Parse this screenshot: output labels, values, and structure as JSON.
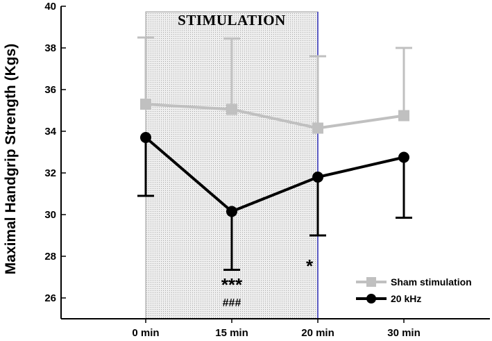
{
  "chart_data": {
    "type": "line",
    "title": "",
    "xlabel": "",
    "ylabel": "Maximal Handgrip Strength (Kgs)",
    "categories": [
      "0 min",
      "15 min",
      "20 min",
      "30 min"
    ],
    "ylim": [
      25,
      40
    ],
    "yticks": [
      26,
      28,
      30,
      32,
      34,
      36,
      38,
      40
    ],
    "grid": false,
    "legend_position": "bottom-right",
    "shaded_region": {
      "label": "STIMULATION",
      "from": "0 min",
      "to": "20 min"
    },
    "series": [
      {
        "name": "Sham stimulation",
        "color": "#c0c0c0",
        "marker": "square",
        "values": [
          35.3,
          35.05,
          34.15,
          34.75
        ],
        "error_upper": [
          38.5,
          38.45,
          37.6,
          38.0
        ],
        "error_lower": null
      },
      {
        "name": "20 kHz",
        "color": "#000000",
        "marker": "circle",
        "values": [
          33.7,
          30.15,
          31.8,
          32.75
        ],
        "error_upper": null,
        "error_lower": [
          30.9,
          27.35,
          29.0,
          29.85
        ]
      }
    ],
    "annotations": [
      {
        "category": "15 min",
        "text": "***",
        "style": "big"
      },
      {
        "category": "15 min",
        "text": "###",
        "style": "small"
      },
      {
        "category": "20 min",
        "text": "*",
        "style": "big"
      }
    ]
  }
}
